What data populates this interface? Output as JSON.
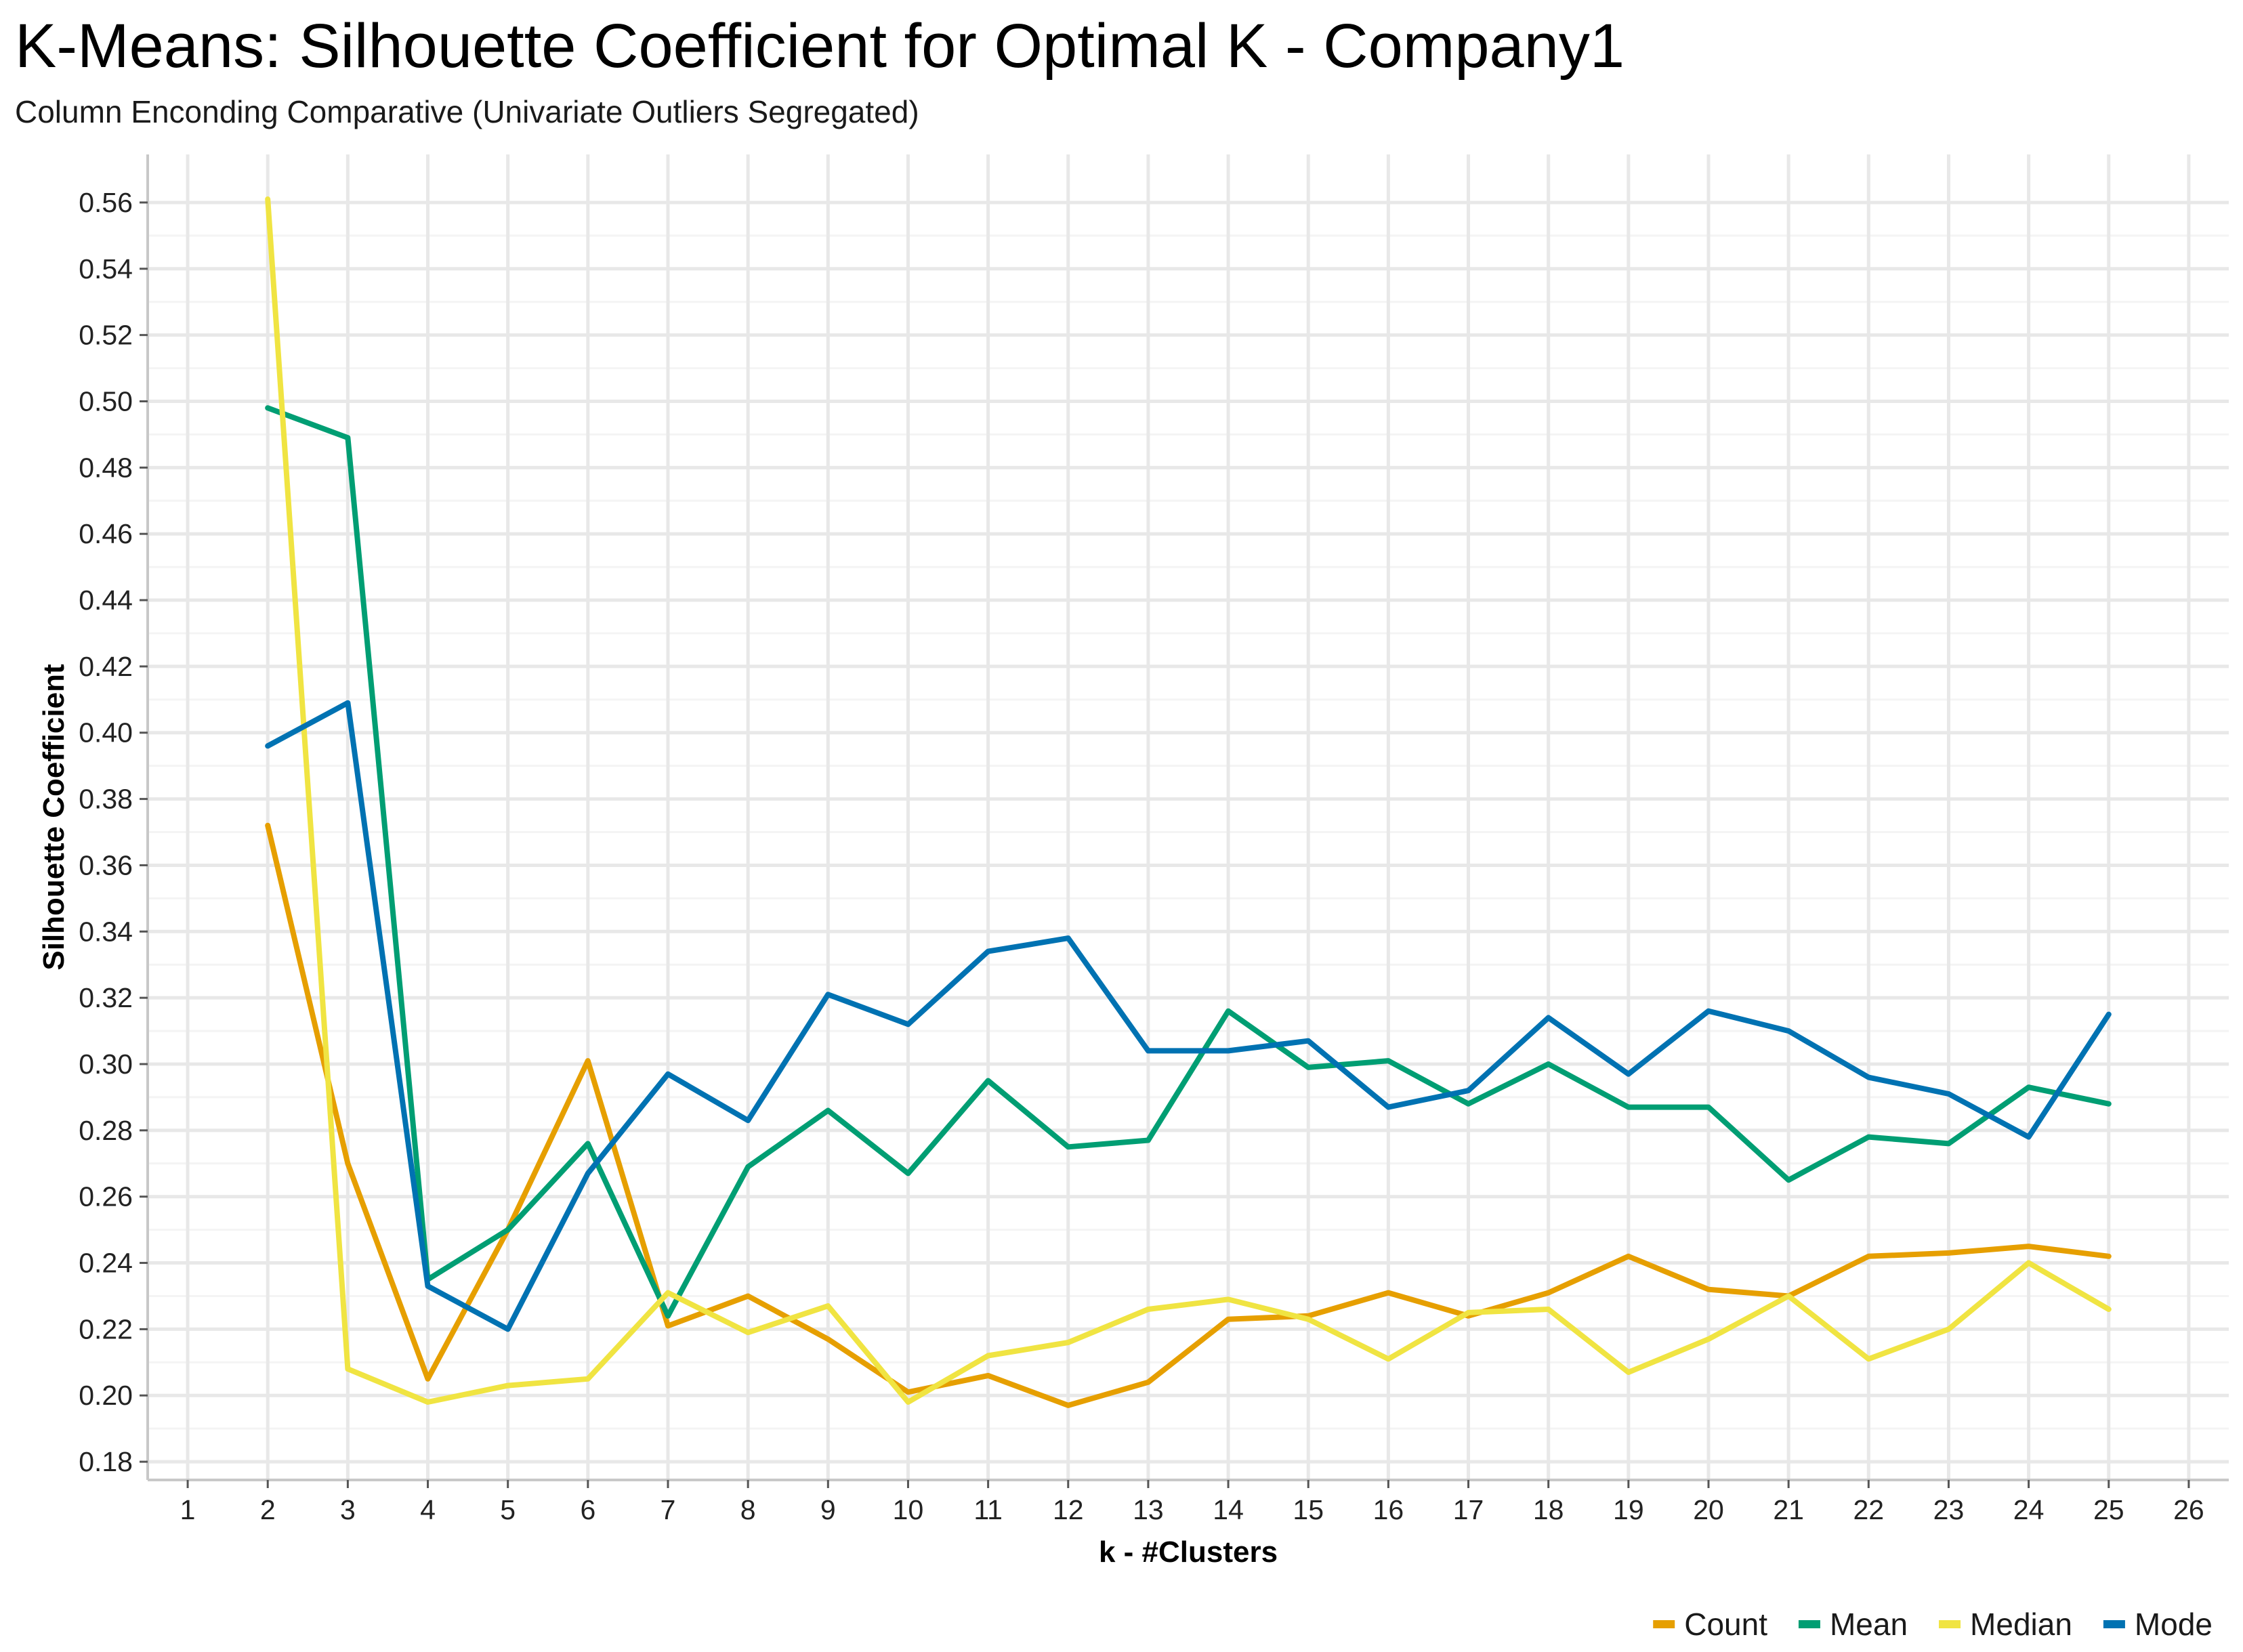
{
  "chart_data": {
    "type": "line",
    "title": "K-Means: Silhouette Coefficient for Optimal K - Company1",
    "subtitle": "Column Enconding Comparative (Univariate Outliers Segregated)",
    "xlabel": "k - #Clusters",
    "ylabel": "Silhouette Coefficient",
    "xlim": [
      1,
      26
    ],
    "ylim": [
      0.18,
      0.56
    ],
    "xticks": [
      1,
      2,
      3,
      4,
      5,
      6,
      7,
      8,
      9,
      10,
      11,
      12,
      13,
      14,
      15,
      16,
      17,
      18,
      19,
      20,
      21,
      22,
      23,
      24,
      25,
      26
    ],
    "yticks": [
      0.18,
      0.2,
      0.22,
      0.24,
      0.26,
      0.28,
      0.3,
      0.32,
      0.34,
      0.36,
      0.38,
      0.4,
      0.42,
      0.44,
      0.46,
      0.48,
      0.5,
      0.52,
      0.54,
      0.56
    ],
    "grid": true,
    "legend_position": "bottom-right",
    "x": [
      2,
      3,
      4,
      5,
      6,
      7,
      8,
      9,
      10,
      11,
      12,
      13,
      14,
      15,
      16,
      17,
      18,
      19,
      20,
      21,
      22,
      23,
      24,
      25
    ],
    "series": [
      {
        "name": "Count",
        "color": "#E69F00",
        "values": [
          0.372,
          0.27,
          0.205,
          0.25,
          0.301,
          0.221,
          0.23,
          0.217,
          0.201,
          0.206,
          0.197,
          0.204,
          0.223,
          0.224,
          0.231,
          0.224,
          0.231,
          0.242,
          0.232,
          0.23,
          0.242,
          0.243,
          0.245,
          0.242
        ]
      },
      {
        "name": "Mean",
        "color": "#009E73",
        "values": [
          0.498,
          0.489,
          0.235,
          0.25,
          0.276,
          0.224,
          0.269,
          0.286,
          0.267,
          0.295,
          0.275,
          0.277,
          0.316,
          0.299,
          0.301,
          0.288,
          0.3,
          0.287,
          0.287,
          0.265,
          0.278,
          0.276,
          0.293,
          0.288
        ]
      },
      {
        "name": "Median",
        "color": "#F0E442",
        "values": [
          0.561,
          0.208,
          0.198,
          0.203,
          0.205,
          0.231,
          0.219,
          0.227,
          0.198,
          0.212,
          0.216,
          0.226,
          0.229,
          0.223,
          0.211,
          0.225,
          0.226,
          0.207,
          0.217,
          0.23,
          0.211,
          0.22,
          0.24,
          0.226
        ]
      },
      {
        "name": "Mode",
        "color": "#0072B2",
        "values": [
          0.396,
          0.409,
          0.233,
          0.22,
          0.267,
          0.297,
          0.283,
          0.321,
          0.312,
          0.334,
          0.338,
          0.304,
          0.304,
          0.307,
          0.287,
          0.292,
          0.314,
          0.297,
          0.316,
          0.31,
          0.296,
          0.291,
          0.278,
          0.315
        ]
      }
    ]
  }
}
